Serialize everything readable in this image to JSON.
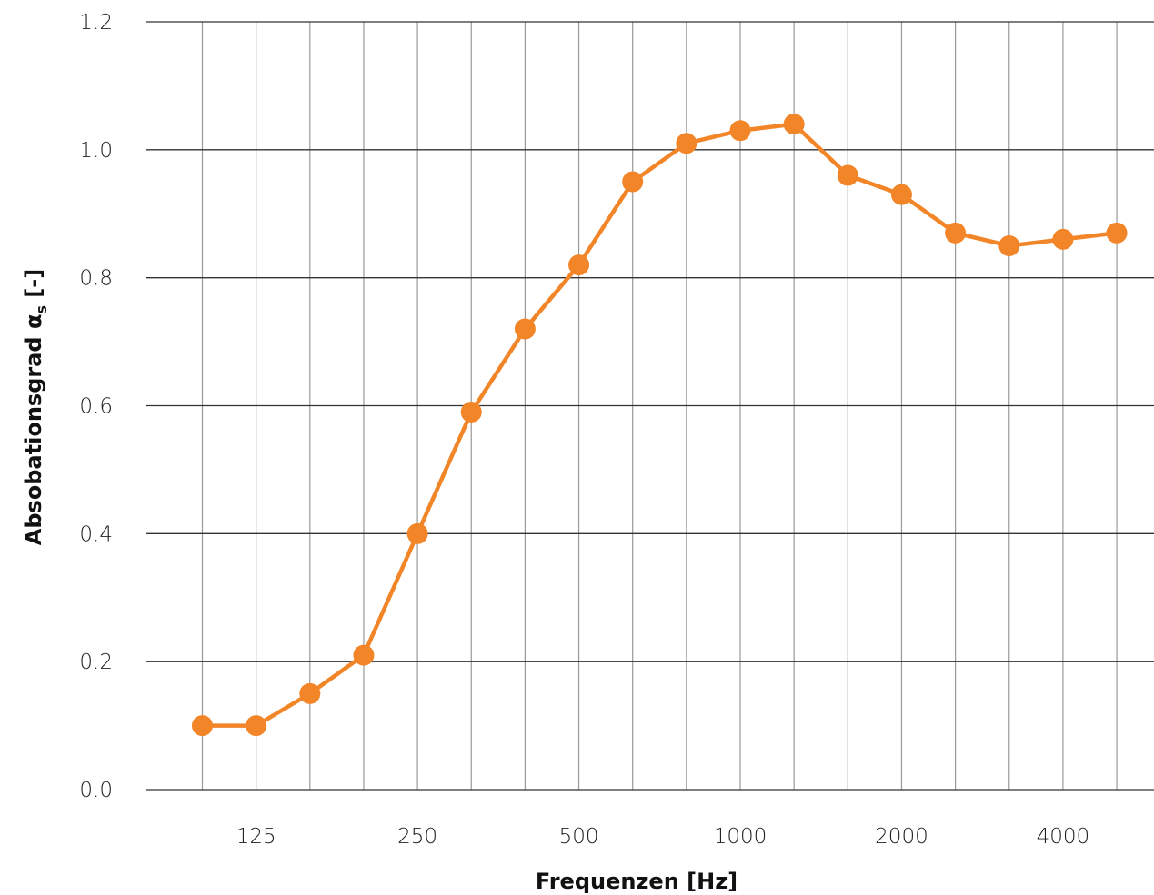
{
  "chart_data": {
    "type": "line",
    "xlabel": "Frequenzen [Hz]",
    "ylabel_main": "Absobationsgrad α",
    "ylabel_sub": "s",
    "ylabel_suffix": " [-]",
    "ylim": [
      0,
      1.2
    ],
    "y_ticks": [
      "0.0",
      "0.2",
      "0.4",
      "0.6",
      "0.8",
      "1.0",
      "1.2"
    ],
    "x_ticks": [
      {
        "value": 125,
        "label": "125"
      },
      {
        "value": 250,
        "label": "250"
      },
      {
        "value": 500,
        "label": "500"
      },
      {
        "value": 1000,
        "label": "1000"
      },
      {
        "value": 2000,
        "label": "2000"
      },
      {
        "value": 4000,
        "label": "4000"
      }
    ],
    "x_scale": "log",
    "x": [
      100,
      125,
      160,
      200,
      250,
      315,
      400,
      500,
      630,
      800,
      1000,
      1250,
      1600,
      2000,
      2500,
      3150,
      4000,
      5000
    ],
    "series": [
      {
        "values": [
          0.1,
          0.1,
          0.15,
          0.21,
          0.4,
          0.59,
          0.72,
          0.82,
          0.95,
          1.01,
          1.03,
          1.04,
          0.96,
          0.93,
          0.87,
          0.85,
          0.86,
          0.87
        ]
      }
    ],
    "grid": true,
    "colors": {
      "line": "#F28527",
      "grid_h": "#333333",
      "grid_v": "#999999"
    }
  }
}
